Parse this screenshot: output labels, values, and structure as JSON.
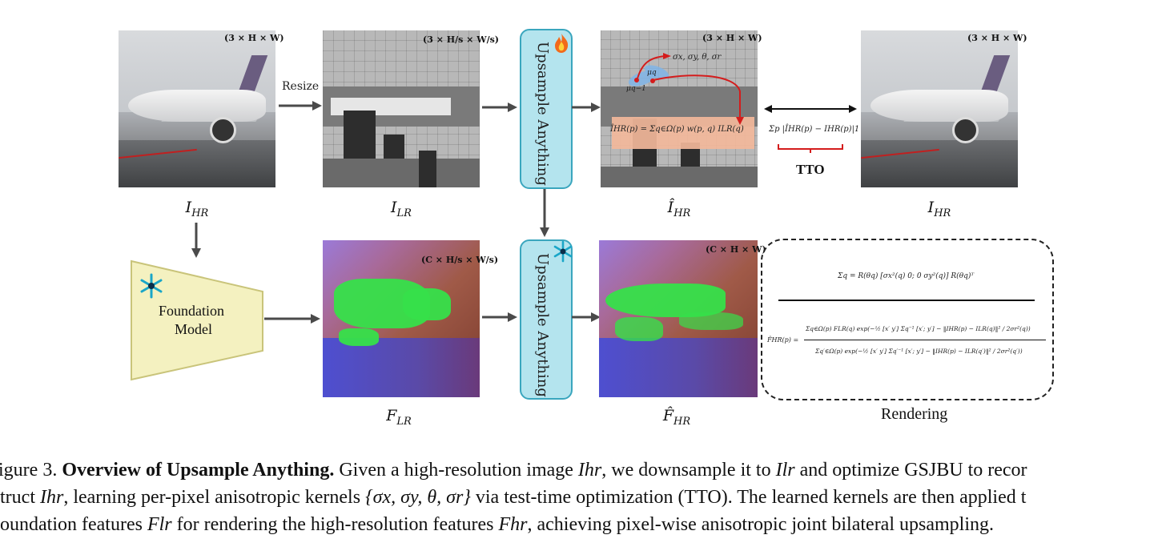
{
  "labels": {
    "ihr_left": "I",
    "ihr_left_sub": "HR",
    "ilr": "I",
    "ilr_sub": "LR",
    "ihat_hr": "Î",
    "ihat_hr_sub": "HR",
    "ihr_right": "I",
    "ihr_right_sub": "HR",
    "flr": "F",
    "flr_sub": "LR",
    "fhat_hr": "F̂",
    "fhat_hr_sub": "HR",
    "rendering": "Rendering"
  },
  "dims": {
    "ihr_left": "(3 × H × W)",
    "ilr": "(3 × H/s × W/s)",
    "ihat_hr": "(3 × H × W)",
    "ihr_right": "(3 × H × W)",
    "flr": "(C × H/s × W/s)",
    "fhat_hr": "(C × H × W)"
  },
  "arrows": {
    "resize": "Resize"
  },
  "modules": {
    "upsample_top": "Upsample Anything",
    "upsample_bottom": "Upsample Anything",
    "foundation_line1": "Foundation",
    "foundation_line2": "Model"
  },
  "annotations": {
    "params": "σx, σy, θ, σr",
    "mu_q": "μq",
    "mu_q1": "μq−1",
    "render_eq": "ÎHR(p) = Σq∈Ω(p) w(p, q) ILR(q)",
    "loss": "Σp |ÎHR(p) − IHR(p)|1",
    "tto": "TTO"
  },
  "equations": {
    "sigma": "Σq = R(θq) [σx²(q) 0; 0 σy²(q)] R(θq)ᵀ",
    "fhat_lhs": "F̂HR(p) =",
    "fhat_num": "Σq∈Ω(p) FLR(q) exp(−½ [x′ y′] Σq⁻¹ [x′; y′] − ‖IHR(p) − ILR(q)‖² / 2σr²(q))",
    "fhat_den": "Σq′∈Ω(p) exp(−½ [x′ y′] Σq′⁻¹ [x′; y′] − ‖IHR(p) − ILR(q′)‖² / 2σr²(q′))"
  },
  "caption": {
    "line1_a": "igure 3.",
    "line1_bold": "Overview of Upsample Anything.",
    "line1_b": "Given a high-resolution image",
    "line1_c": "we downsample it to",
    "line1_d": "and optimize GSJBU to recor",
    "line2_a": "truct",
    "line2_b": ", learning per-pixel anisotropic kernels",
    "line2_c": "via test-time optimization (TTO). The learned kernels are then applied t",
    "line3_a": "oundation features",
    "line3_b": "for rendering the high-resolution features",
    "line3_c": ", achieving pixel-wise anisotropic joint bilateral upsampling.",
    "ihr": "Ihr",
    "ilr": "Ilr",
    "kernels": "{σx, σy, θ, σr}",
    "flr": "Flr",
    "fhr": "Fhr"
  },
  "colors": {
    "module_fill": "#b4e4ee",
    "module_border": "#3aa6be",
    "foundation_fill": "#f4f1c0",
    "foundation_border": "#c9c47a",
    "arrow": "#4a4a4a",
    "red_arrow": "#d41c1c",
    "eq_highlight": "#f2b79a"
  },
  "icons": [
    "fire-icon",
    "snowflake-icon"
  ]
}
